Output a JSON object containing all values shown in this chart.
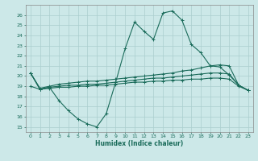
{
  "xlabel": "Humidex (Indice chaleur)",
  "background_color": "#cce8e8",
  "grid_color": "#aacece",
  "line_color": "#1a6b5a",
  "xlim": [
    -0.5,
    23.5
  ],
  "ylim": [
    14.5,
    27.0
  ],
  "yticks": [
    15,
    16,
    17,
    18,
    19,
    20,
    21,
    22,
    23,
    24,
    25,
    26
  ],
  "xticks": [
    0,
    1,
    2,
    3,
    4,
    5,
    6,
    7,
    8,
    9,
    10,
    11,
    12,
    13,
    14,
    15,
    16,
    17,
    18,
    19,
    20,
    21,
    22,
    23
  ],
  "series1_y": [
    20.3,
    18.7,
    18.9,
    17.6,
    16.6,
    15.8,
    15.3,
    15.0,
    16.3,
    19.4,
    22.7,
    25.3,
    24.4,
    23.6,
    26.2,
    26.4,
    25.5,
    23.1,
    22.3,
    21.0,
    20.9,
    20.1,
    19.1,
    18.6
  ],
  "series2_y": [
    20.3,
    18.8,
    19.0,
    19.2,
    19.3,
    19.4,
    19.5,
    19.5,
    19.6,
    19.7,
    19.8,
    19.9,
    20.0,
    20.1,
    20.2,
    20.3,
    20.5,
    20.6,
    20.8,
    21.0,
    21.1,
    21.0,
    19.1,
    18.6
  ],
  "series3_y": [
    20.3,
    18.7,
    18.9,
    19.0,
    19.1,
    19.1,
    19.2,
    19.2,
    19.3,
    19.4,
    19.5,
    19.6,
    19.7,
    19.8,
    19.8,
    19.9,
    20.0,
    20.1,
    20.2,
    20.3,
    20.3,
    20.2,
    19.1,
    18.6
  ],
  "series4_y": [
    19.0,
    18.7,
    18.8,
    18.9,
    18.9,
    19.0,
    19.0,
    19.1,
    19.1,
    19.2,
    19.3,
    19.4,
    19.4,
    19.5,
    19.5,
    19.6,
    19.6,
    19.7,
    19.7,
    19.8,
    19.8,
    19.7,
    19.0,
    18.6
  ]
}
